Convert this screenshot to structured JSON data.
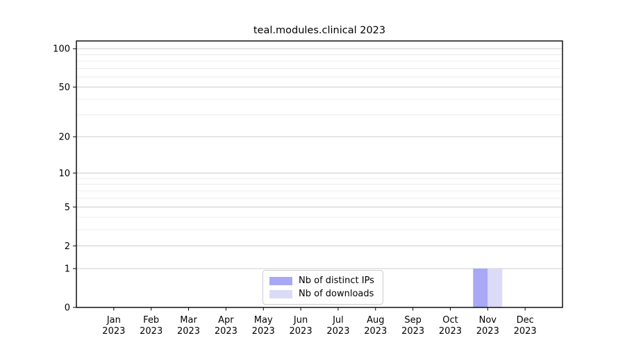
{
  "chart_data": {
    "type": "bar",
    "title": "teal.modules.clinical 2023",
    "xlabel": "",
    "ylabel": "",
    "yscale": "log1p",
    "ylim": [
      0,
      115
    ],
    "y_major_ticks": [
      100,
      50,
      20,
      10,
      5,
      2,
      1,
      0
    ],
    "y_minor_gridlines": [
      90,
      80,
      70,
      60,
      40,
      30,
      9,
      8,
      7,
      6,
      4,
      3
    ],
    "grid": true,
    "legend_position": "lower center",
    "categories": [
      {
        "month": "Jan",
        "year": "2023"
      },
      {
        "month": "Feb",
        "year": "2023"
      },
      {
        "month": "Mar",
        "year": "2023"
      },
      {
        "month": "Apr",
        "year": "2023"
      },
      {
        "month": "May",
        "year": "2023"
      },
      {
        "month": "Jun",
        "year": "2023"
      },
      {
        "month": "Jul",
        "year": "2023"
      },
      {
        "month": "Aug",
        "year": "2023"
      },
      {
        "month": "Sep",
        "year": "2023"
      },
      {
        "month": "Oct",
        "year": "2023"
      },
      {
        "month": "Nov",
        "year": "2023"
      },
      {
        "month": "Dec",
        "year": "2023"
      }
    ],
    "series": [
      {
        "name": "Nb of distinct IPs",
        "color": "#a8a8f5",
        "values": [
          0,
          0,
          0,
          0,
          0,
          0,
          0,
          0,
          0,
          0,
          1,
          0
        ]
      },
      {
        "name": "Nb of downloads",
        "color": "#dbdbf8",
        "values": [
          0,
          0,
          0,
          0,
          0,
          0,
          0,
          0,
          0,
          0,
          1,
          0
        ]
      }
    ]
  },
  "colors": {
    "background": "#ffffff",
    "axis": "#000000",
    "tick_label": "#000000",
    "grid_major": "#cccccc",
    "grid_minor": "#ececec",
    "legend_border": "#cccccc"
  }
}
